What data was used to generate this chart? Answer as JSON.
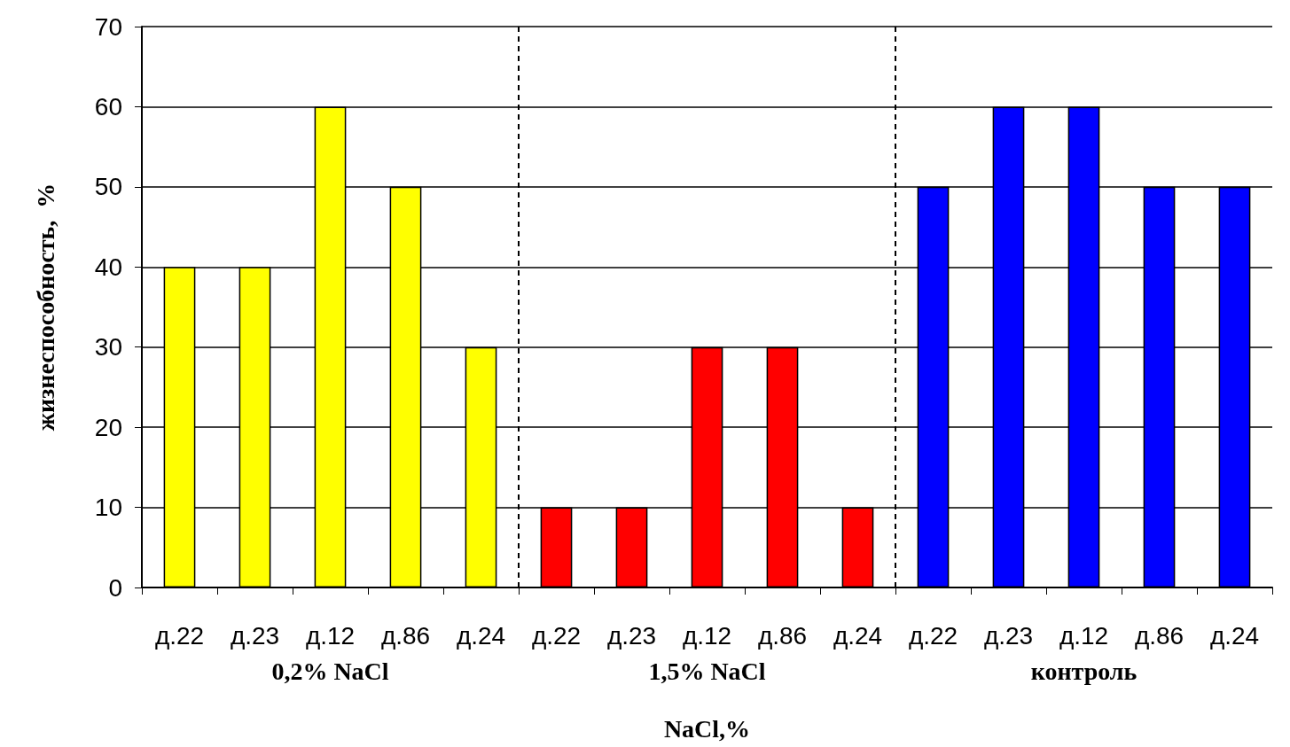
{
  "chart_data": {
    "type": "bar",
    "ylabel": "жизнеспособность,  %",
    "xlabel": "NaCl,%",
    "categories": [
      "д.22",
      "д.23",
      "д.12",
      "д.86",
      "д.24",
      "д.22",
      "д.23",
      "д.12",
      "д.86",
      "д.24",
      "д.22",
      "д.23",
      "д.12",
      "д.86",
      "д.24"
    ],
    "values": [
      40,
      40,
      60,
      50,
      30,
      10,
      10,
      30,
      30,
      10,
      50,
      60,
      60,
      50,
      50
    ],
    "colors": [
      "#ffff00",
      "#ffff00",
      "#ffff00",
      "#ffff00",
      "#ffff00",
      "#ff0000",
      "#ff0000",
      "#ff0000",
      "#ff0000",
      "#ff0000",
      "#0000ff",
      "#0000ff",
      "#0000ff",
      "#0000ff",
      "#0000ff"
    ],
    "ylim": [
      0,
      70
    ],
    "yticks": [
      0,
      10,
      20,
      30,
      40,
      50,
      60,
      70
    ],
    "grid": "y",
    "annotations": [
      "0,2% NaCl",
      "1,5% NaCl",
      "контроль"
    ]
  }
}
